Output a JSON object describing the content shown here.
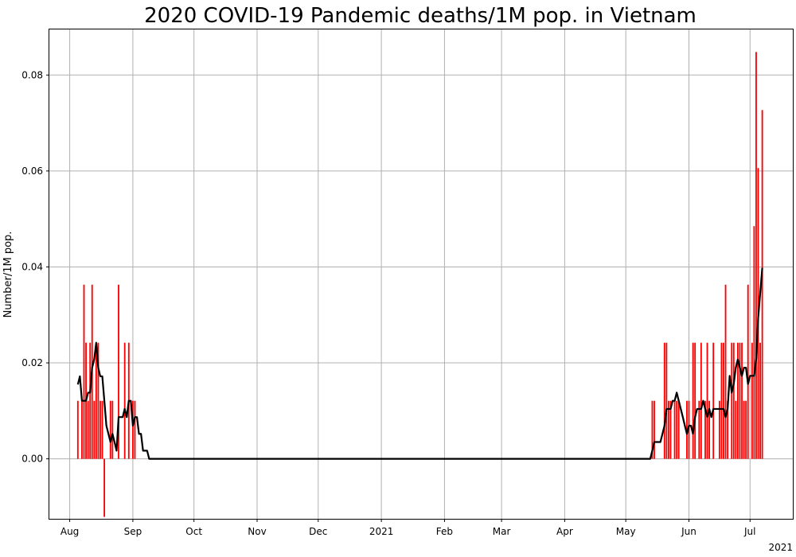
{
  "chart_data": {
    "type": "bar",
    "title": "2020 COVID-19 Pandemic deaths/1M pop. in Vietnam",
    "ylabel": "Number/1M pop.",
    "xlabel": "",
    "x_offset_label": "2021",
    "grid": true,
    "ylim": [
      -0.0125,
      0.0895
    ],
    "xlim": [
      "2020-07-22",
      "2021-07-22"
    ],
    "yticks": [
      0.0,
      0.02,
      0.04,
      0.06,
      0.08
    ],
    "ytick_labels": [
      "0.00",
      "0.02",
      "0.04",
      "0.06",
      "0.08"
    ],
    "xticks": [
      {
        "date": "2020-08-01",
        "label": "Aug"
      },
      {
        "date": "2020-09-01",
        "label": "Sep"
      },
      {
        "date": "2020-10-01",
        "label": "Oct"
      },
      {
        "date": "2020-11-01",
        "label": "Nov"
      },
      {
        "date": "2020-12-01",
        "label": "Dec"
      },
      {
        "date": "2021-01-01",
        "label": "2021"
      },
      {
        "date": "2021-02-01",
        "label": "Feb"
      },
      {
        "date": "2021-03-01",
        "label": "Mar"
      },
      {
        "date": "2021-04-01",
        "label": "Apr"
      },
      {
        "date": "2021-05-01",
        "label": "May"
      },
      {
        "date": "2021-06-01",
        "label": "Jun"
      },
      {
        "date": "2021-07-01",
        "label": "Jul"
      }
    ],
    "series": [
      {
        "type": "bar",
        "color": "#ff0000",
        "points": [
          [
            "2020-08-05",
            0.0121
          ],
          [
            "2020-08-07",
            0.0121
          ],
          [
            "2020-08-08",
            0.0363
          ],
          [
            "2020-08-09",
            0.0242
          ],
          [
            "2020-08-10",
            0.0121
          ],
          [
            "2020-08-11",
            0.0242
          ],
          [
            "2020-08-12",
            0.0363
          ],
          [
            "2020-08-13",
            0.0121
          ],
          [
            "2020-08-14",
            0.0242
          ],
          [
            "2020-08-15",
            0.0242
          ],
          [
            "2020-08-16",
            0.0121
          ],
          [
            "2020-08-17",
            0.0121
          ],
          [
            "2020-08-18",
            -0.0121
          ],
          [
            "2020-08-21",
            0.0121
          ],
          [
            "2020-08-22",
            0.0121
          ],
          [
            "2020-08-25",
            0.0363
          ],
          [
            "2020-08-28",
            0.0242
          ],
          [
            "2020-08-30",
            0.0242
          ],
          [
            "2020-09-01",
            0.0121
          ],
          [
            "2020-09-02",
            0.0121
          ],
          [
            "2021-05-14",
            0.0121
          ],
          [
            "2021-05-15",
            0.0121
          ],
          [
            "2021-05-20",
            0.0242
          ],
          [
            "2021-05-21",
            0.0242
          ],
          [
            "2021-05-22",
            0.0121
          ],
          [
            "2021-05-23",
            0.0121
          ],
          [
            "2021-05-25",
            0.0121
          ],
          [
            "2021-05-26",
            0.0121
          ],
          [
            "2021-05-27",
            0.0121
          ],
          [
            "2021-05-31",
            0.0121
          ],
          [
            "2021-06-01",
            0.0121
          ],
          [
            "2021-06-03",
            0.0242
          ],
          [
            "2021-06-04",
            0.0242
          ],
          [
            "2021-06-06",
            0.0121
          ],
          [
            "2021-06-07",
            0.0242
          ],
          [
            "2021-06-09",
            0.0121
          ],
          [
            "2021-06-10",
            0.0242
          ],
          [
            "2021-06-11",
            0.0121
          ],
          [
            "2021-06-13",
            0.0242
          ],
          [
            "2021-06-16",
            0.0121
          ],
          [
            "2021-06-17",
            0.0242
          ],
          [
            "2021-06-18",
            0.0242
          ],
          [
            "2021-06-19",
            0.0363
          ],
          [
            "2021-06-20",
            0.0121
          ],
          [
            "2021-06-22",
            0.0242
          ],
          [
            "2021-06-23",
            0.0242
          ],
          [
            "2021-06-24",
            0.0121
          ],
          [
            "2021-06-25",
            0.0242
          ],
          [
            "2021-06-26",
            0.0242
          ],
          [
            "2021-06-27",
            0.0242
          ],
          [
            "2021-06-28",
            0.0121
          ],
          [
            "2021-06-29",
            0.0121
          ],
          [
            "2021-06-30",
            0.0363
          ],
          [
            "2021-07-02",
            0.0242
          ],
          [
            "2021-07-03",
            0.0485
          ],
          [
            "2021-07-04",
            0.0848
          ],
          [
            "2021-07-05",
            0.0606
          ],
          [
            "2021-07-06",
            0.0242
          ],
          [
            "2021-07-07",
            0.0727
          ]
        ]
      },
      {
        "type": "line",
        "color": "#000000",
        "points": [
          [
            "2020-08-05",
            0.0155
          ],
          [
            "2020-08-06",
            0.0172
          ],
          [
            "2020-08-07",
            0.0121
          ],
          [
            "2020-08-08",
            0.0121
          ],
          [
            "2020-08-09",
            0.0121
          ],
          [
            "2020-08-10",
            0.0138
          ],
          [
            "2020-08-11",
            0.0138
          ],
          [
            "2020-08-12",
            0.019
          ],
          [
            "2020-08-13",
            0.0207
          ],
          [
            "2020-08-14",
            0.0242
          ],
          [
            "2020-08-15",
            0.019
          ],
          [
            "2020-08-16",
            0.0172
          ],
          [
            "2020-08-17",
            0.0172
          ],
          [
            "2020-08-18",
            0.0121
          ],
          [
            "2020-08-19",
            0.0069
          ],
          [
            "2020-08-20",
            0.0052
          ],
          [
            "2020-08-21",
            0.0035
          ],
          [
            "2020-08-22",
            0.0052
          ],
          [
            "2020-08-23",
            0.0035
          ],
          [
            "2020-08-24",
            0.0017
          ],
          [
            "2020-08-25",
            0.0087
          ],
          [
            "2020-08-26",
            0.0087
          ],
          [
            "2020-08-27",
            0.0087
          ],
          [
            "2020-08-28",
            0.0104
          ],
          [
            "2020-08-29",
            0.0087
          ],
          [
            "2020-08-30",
            0.0121
          ],
          [
            "2020-08-31",
            0.0121
          ],
          [
            "2020-09-01",
            0.0069
          ],
          [
            "2020-09-02",
            0.0087
          ],
          [
            "2020-09-03",
            0.0087
          ],
          [
            "2020-09-04",
            0.0052
          ],
          [
            "2020-09-05",
            0.0052
          ],
          [
            "2020-09-06",
            0.0017
          ],
          [
            "2020-09-07",
            0.0017
          ],
          [
            "2020-09-08",
            0.0017
          ],
          [
            "2020-09-09",
            0.0
          ],
          [
            "2021-05-13",
            0.0
          ],
          [
            "2021-05-14",
            0.0017
          ],
          [
            "2021-05-15",
            0.0035
          ],
          [
            "2021-05-16",
            0.0035
          ],
          [
            "2021-05-17",
            0.0035
          ],
          [
            "2021-05-18",
            0.0035
          ],
          [
            "2021-05-19",
            0.0052
          ],
          [
            "2021-05-20",
            0.0069
          ],
          [
            "2021-05-21",
            0.0104
          ],
          [
            "2021-05-22",
            0.0104
          ],
          [
            "2021-05-23",
            0.0104
          ],
          [
            "2021-05-24",
            0.0121
          ],
          [
            "2021-05-25",
            0.0121
          ],
          [
            "2021-05-26",
            0.0138
          ],
          [
            "2021-05-27",
            0.0121
          ],
          [
            "2021-05-28",
            0.0104
          ],
          [
            "2021-05-29",
            0.0087
          ],
          [
            "2021-05-30",
            0.0069
          ],
          [
            "2021-05-31",
            0.0052
          ],
          [
            "2021-06-01",
            0.0069
          ],
          [
            "2021-06-02",
            0.0069
          ],
          [
            "2021-06-03",
            0.0052
          ],
          [
            "2021-06-04",
            0.0087
          ],
          [
            "2021-06-05",
            0.0104
          ],
          [
            "2021-06-06",
            0.0104
          ],
          [
            "2021-06-07",
            0.0104
          ],
          [
            "2021-06-08",
            0.0121
          ],
          [
            "2021-06-09",
            0.0104
          ],
          [
            "2021-06-10",
            0.0087
          ],
          [
            "2021-06-11",
            0.0104
          ],
          [
            "2021-06-12",
            0.0087
          ],
          [
            "2021-06-13",
            0.0104
          ],
          [
            "2021-06-14",
            0.0104
          ],
          [
            "2021-06-15",
            0.0104
          ],
          [
            "2021-06-16",
            0.0104
          ],
          [
            "2021-06-17",
            0.0104
          ],
          [
            "2021-06-18",
            0.0104
          ],
          [
            "2021-06-19",
            0.0087
          ],
          [
            "2021-06-20",
            0.0104
          ],
          [
            "2021-06-21",
            0.0173
          ],
          [
            "2021-06-22",
            0.0138
          ],
          [
            "2021-06-23",
            0.0156
          ],
          [
            "2021-06-24",
            0.019
          ],
          [
            "2021-06-25",
            0.0207
          ],
          [
            "2021-06-26",
            0.019
          ],
          [
            "2021-06-27",
            0.0173
          ],
          [
            "2021-06-28",
            0.019
          ],
          [
            "2021-06-29",
            0.019
          ],
          [
            "2021-06-30",
            0.0156
          ],
          [
            "2021-07-01",
            0.0173
          ],
          [
            "2021-07-02",
            0.0173
          ],
          [
            "2021-07-03",
            0.0173
          ],
          [
            "2021-07-04",
            0.0207
          ],
          [
            "2021-07-05",
            0.0294
          ],
          [
            "2021-07-06",
            0.0346
          ],
          [
            "2021-07-07",
            0.0398
          ]
        ]
      }
    ]
  }
}
